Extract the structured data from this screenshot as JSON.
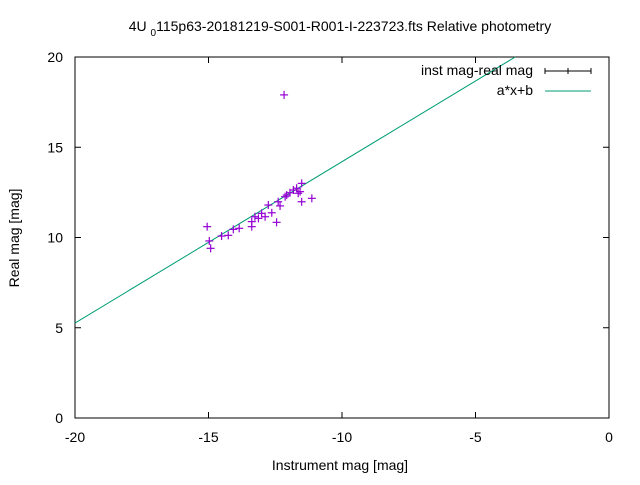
{
  "chart_data": {
    "type": "scatter",
    "title_prefix": "4U",
    "title_subscript": "0",
    "title_rest": "115p63-20181219-S001-R001-I-223723.fts Relative photometry",
    "xlabel": "Instrument mag [mag]",
    "ylabel": "Real mag [mag]",
    "xlim": [
      -20,
      0
    ],
    "ylim": [
      0,
      20
    ],
    "xticks": [
      -20,
      -15,
      -10,
      -5,
      0
    ],
    "yticks": [
      0,
      5,
      10,
      15,
      20
    ],
    "grid": false,
    "legend_position": "top-right",
    "series": [
      {
        "name": "inst mag-real mag",
        "style": "points with errorbars",
        "color": "#9400d3",
        "points": [
          [
            -15.05,
            10.6
          ],
          [
            -14.97,
            9.81
          ],
          [
            -14.92,
            9.4
          ],
          [
            -14.51,
            10.08
          ],
          [
            -14.26,
            10.12
          ],
          [
            -14.07,
            10.45
          ],
          [
            -13.85,
            10.51
          ],
          [
            -13.38,
            10.88
          ],
          [
            -13.38,
            10.6
          ],
          [
            -13.26,
            11.15
          ],
          [
            -13.13,
            11.06
          ],
          [
            -13.01,
            11.34
          ],
          [
            -12.88,
            11.15
          ],
          [
            -12.76,
            11.8
          ],
          [
            -12.63,
            11.37
          ],
          [
            -12.45,
            10.84
          ],
          [
            -12.39,
            11.98
          ],
          [
            -12.32,
            11.75
          ],
          [
            -12.13,
            12.26
          ],
          [
            -12.07,
            12.35
          ],
          [
            -11.95,
            12.48
          ],
          [
            -11.82,
            12.63
          ],
          [
            -11.7,
            12.73
          ],
          [
            -11.57,
            12.54
          ],
          [
            -11.51,
            13.0
          ],
          [
            -11.51,
            11.98
          ],
          [
            -11.13,
            12.17
          ],
          [
            -11.64,
            12.45
          ],
          [
            -12.17,
            17.9
          ]
        ]
      },
      {
        "name": "a*x+b",
        "style": "line",
        "color": "#009e73",
        "a": 0.894,
        "b": 23.14
      }
    ]
  }
}
